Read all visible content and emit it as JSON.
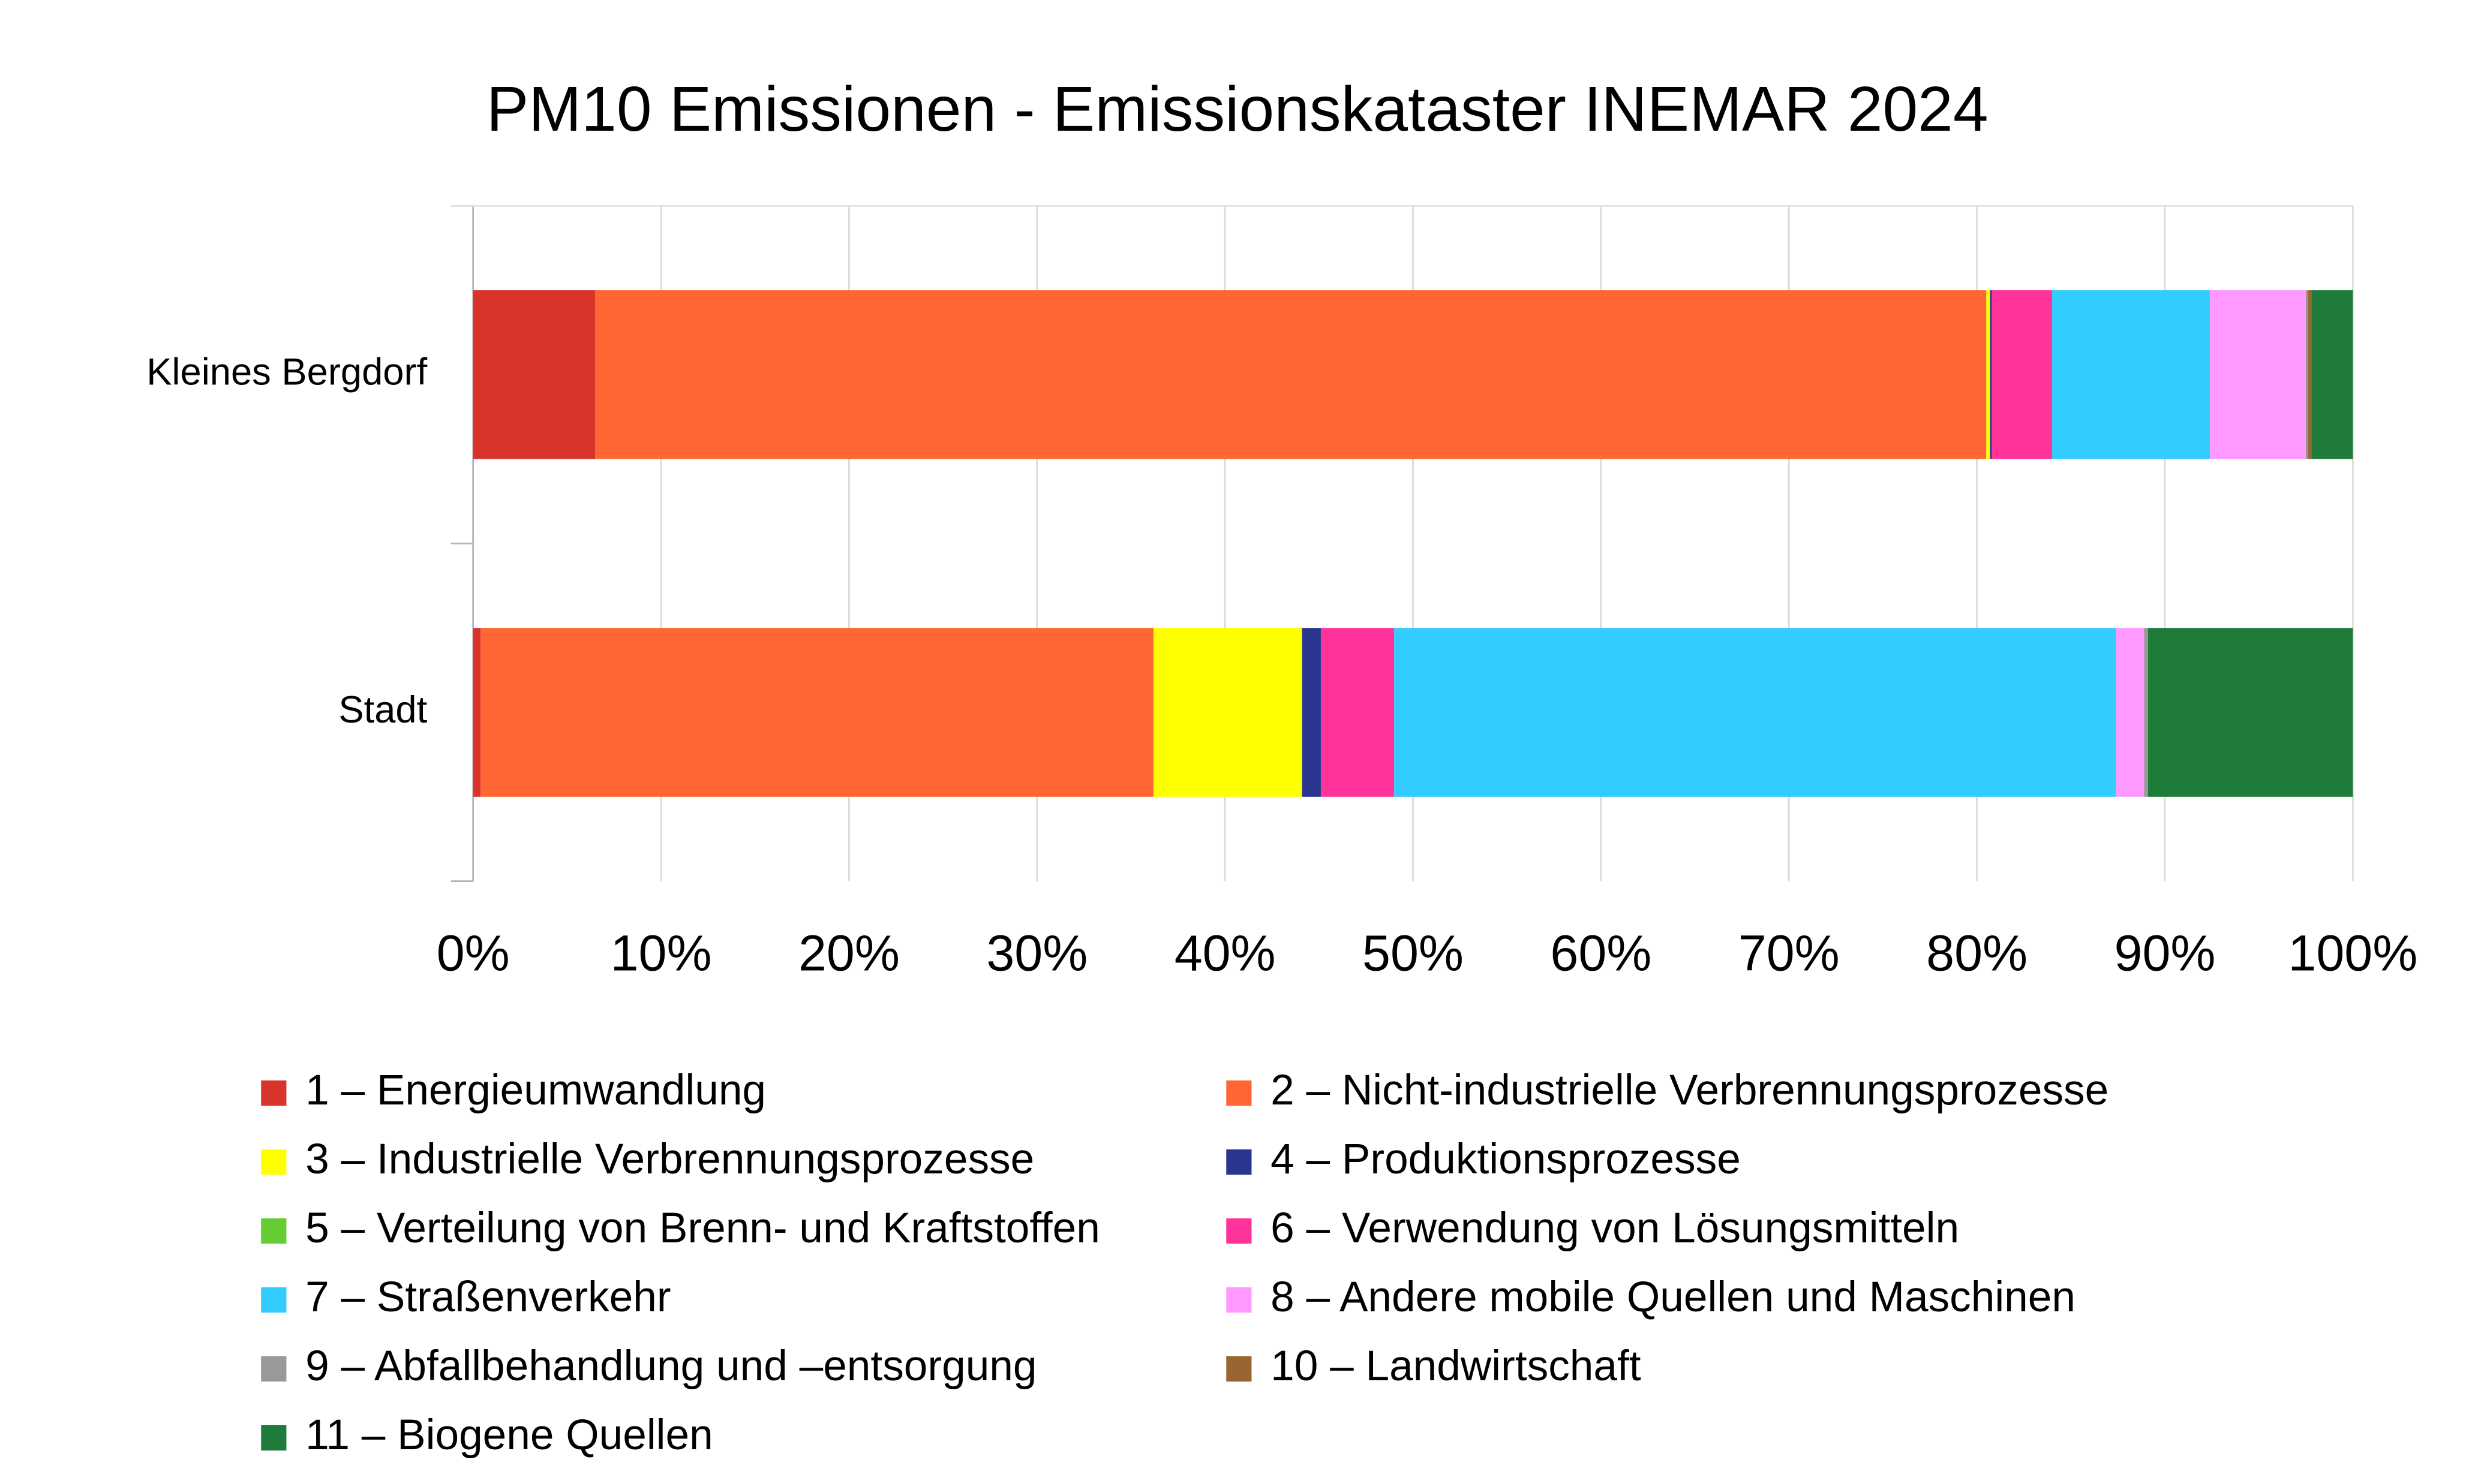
{
  "chart_data": {
    "type": "bar",
    "orientation": "horizontal",
    "stacked": true,
    "title": "PM10 Emissionen - Emissionskataster INEMAR 2024",
    "categories": [
      "Kleines Bergdorf",
      "Stadt"
    ],
    "series": [
      {
        "name": "1 – Energieumwandlung",
        "color": "#d9342b",
        "values": [
          6.5,
          0.4
        ]
      },
      {
        "name": "2 – Nicht-industrielle Verbrennungsprozesse",
        "color": "#ff6633",
        "values": [
          74.0,
          35.8
        ]
      },
      {
        "name": "3 – Industrielle Verbrennungsprozesse",
        "color": "#ffff00",
        "values": [
          0.2,
          7.9
        ]
      },
      {
        "name": "4 – Produktionsprozesse",
        "color": "#2a3590",
        "values": [
          0.1,
          1.0
        ]
      },
      {
        "name": "5 – Verteilung von Brenn- und Kraftstoffen",
        "color": "#66cc33",
        "values": [
          0,
          0
        ]
      },
      {
        "name": "6 – Verwendung von Lösungsmitteln",
        "color": "#ff3399",
        "values": [
          3.2,
          3.9
        ]
      },
      {
        "name": "7 – Straßenverkehr",
        "color": "#33ccff",
        "values": [
          8.4,
          38.4
        ]
      },
      {
        "name": "8 – Andere mobile Quellen und Maschinen",
        "color": "#ff99ff",
        "values": [
          5.1,
          1.5
        ]
      },
      {
        "name": "9 – Abfallbehandlung und –entsorgung",
        "color": "#999999",
        "values": [
          0.1,
          0.2
        ]
      },
      {
        "name": "10 – Landwirtschaft",
        "color": "#996633",
        "values": [
          0.2,
          0
        ]
      },
      {
        "name": "11 – Biogene Quellen",
        "color": "#1e7b3a",
        "values": [
          2.2,
          10.9
        ]
      }
    ],
    "xlim": [
      0,
      100
    ],
    "xticks": [
      {
        "value": 0,
        "label": "0%"
      },
      {
        "value": 10,
        "label": "10%"
      },
      {
        "value": 20,
        "label": "20%"
      },
      {
        "value": 30,
        "label": "30%"
      },
      {
        "value": 40,
        "label": "40%"
      },
      {
        "value": 50,
        "label": "50%"
      },
      {
        "value": 60,
        "label": "60%"
      },
      {
        "value": 70,
        "label": "70%"
      },
      {
        "value": 80,
        "label": "80%"
      },
      {
        "value": 90,
        "label": "90%"
      },
      {
        "value": 100,
        "label": "100%"
      }
    ],
    "grid": true,
    "legend": "bottom"
  }
}
